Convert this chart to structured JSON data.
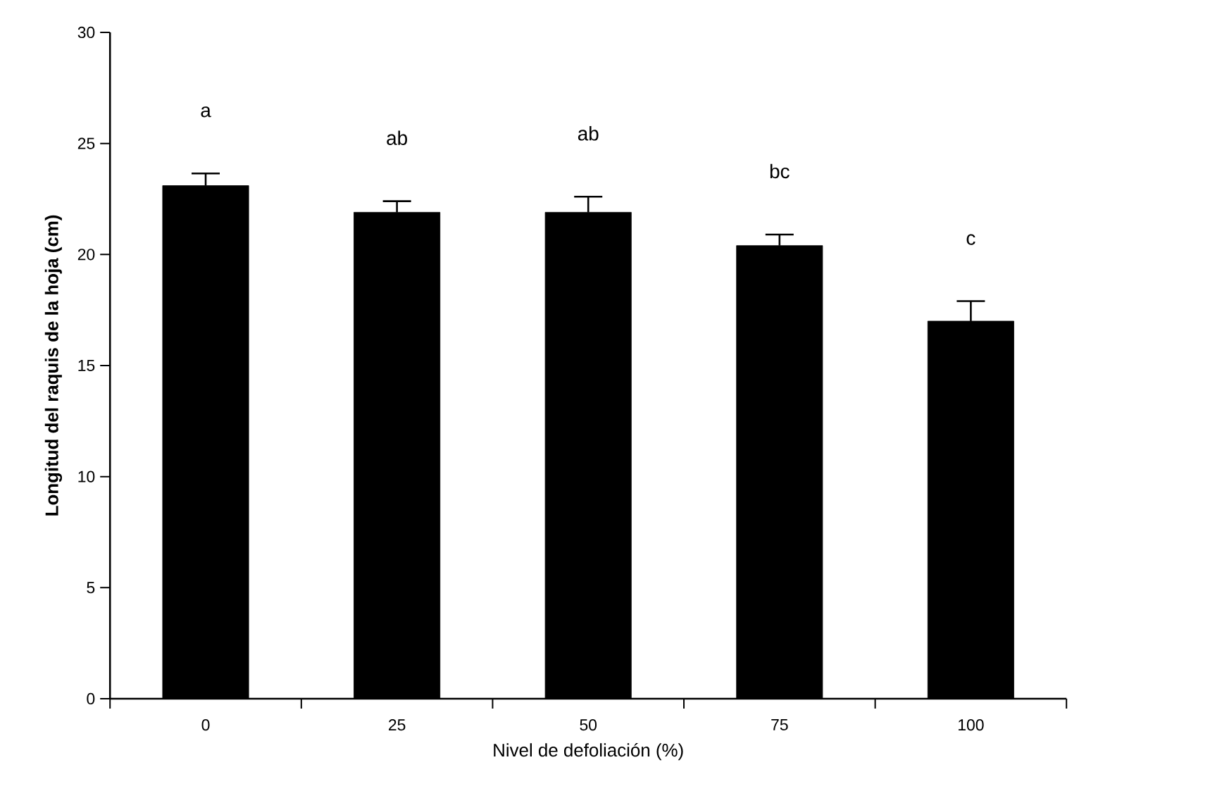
{
  "chart_data": {
    "type": "bar",
    "xlabel": "Nivel de defoliación (%)",
    "ylabel": "Longitud del raquis de la hoja (cm)",
    "categories": [
      "0",
      "25",
      "50",
      "75",
      "100"
    ],
    "values": [
      23.1,
      21.9,
      21.9,
      20.4,
      17.0
    ],
    "errors": [
      0.55,
      0.5,
      0.7,
      0.5,
      0.9
    ],
    "color": "#000000",
    "ylim": [
      0,
      30
    ],
    "yticks": [
      0,
      5,
      10,
      15,
      20,
      25,
      30
    ],
    "grid": false,
    "annotations": [
      "a",
      "ab",
      "ab",
      "bc",
      "c"
    ]
  }
}
